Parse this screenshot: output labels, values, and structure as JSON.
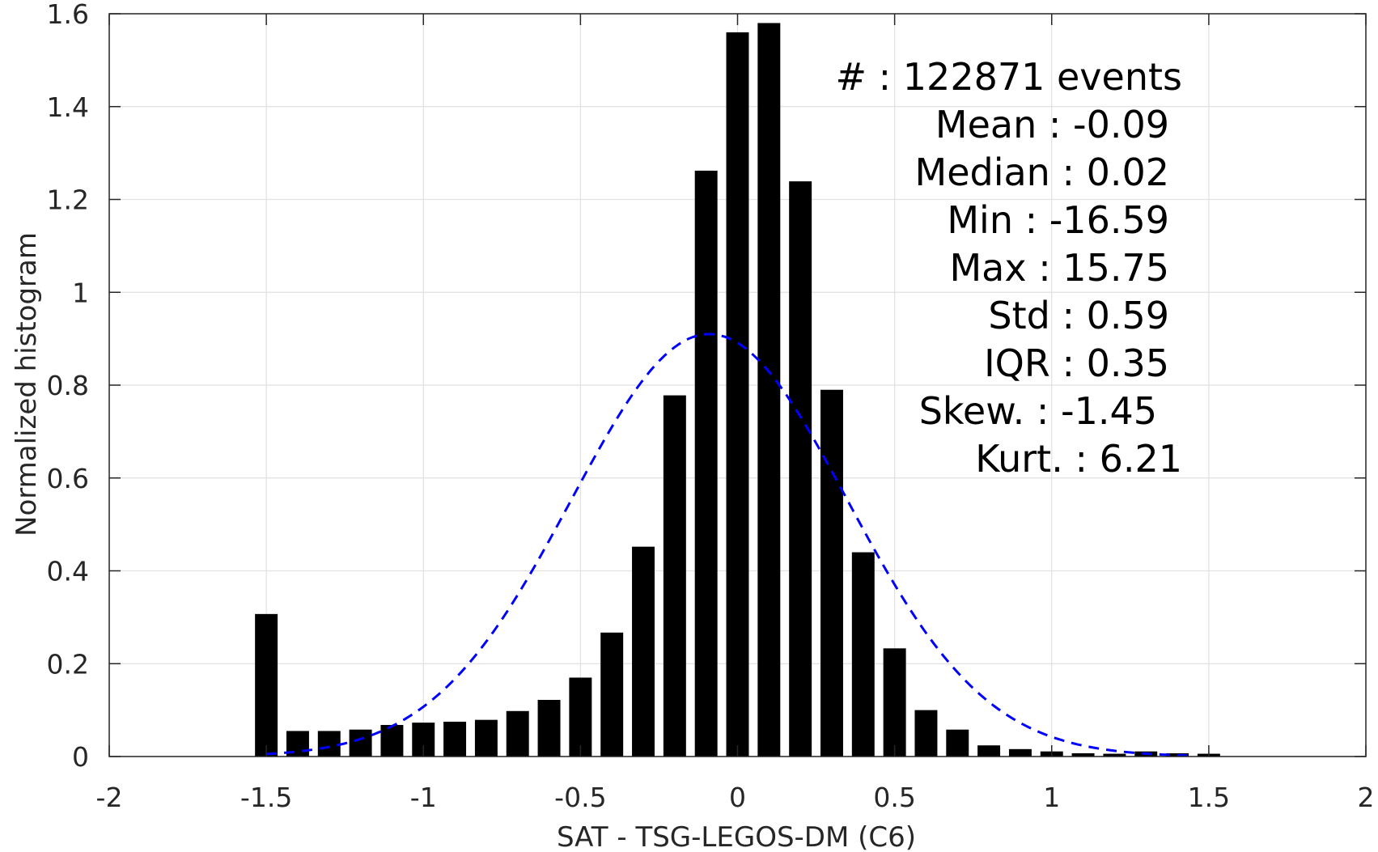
{
  "chart_data": {
    "type": "bar",
    "xlabel": "SAT - TSG-LEGOS-DM (C6)",
    "ylabel": "Normalized histogram",
    "xlim": [
      -2,
      2
    ],
    "ylim": [
      0,
      1.6
    ],
    "grid": true,
    "bar_color": "#000000",
    "x_ticks": [
      "-2",
      "-1.5",
      "-1",
      "-0.5",
      "0",
      "0.5",
      "1",
      "1.5",
      "2"
    ],
    "y_ticks": [
      "0",
      "0.2",
      "0.4",
      "0.6",
      "0.8",
      "1",
      "1.2",
      "1.4",
      "1.6"
    ],
    "x_tick_values": [
      -2,
      -1.5,
      -1,
      -0.5,
      0,
      0.5,
      1,
      1.5,
      2
    ],
    "y_tick_values": [
      0,
      0.2,
      0.4,
      0.6,
      0.8,
      1,
      1.2,
      1.4,
      1.6
    ],
    "bin_width": 0.1,
    "x": [
      -1.5,
      -1.4,
      -1.3,
      -1.2,
      -1.1,
      -1.0,
      -0.9,
      -0.8,
      -0.7,
      -0.6,
      -0.5,
      -0.4,
      -0.3,
      -0.2,
      -0.1,
      0.0,
      0.1,
      0.2,
      0.3,
      0.4,
      0.5,
      0.6,
      0.7,
      0.8,
      0.9,
      1.0,
      1.1,
      1.2,
      1.3,
      1.4,
      1.5
    ],
    "values": [
      0.307,
      0.055,
      0.055,
      0.058,
      0.068,
      0.073,
      0.075,
      0.079,
      0.098,
      0.122,
      0.17,
      0.267,
      0.452,
      0.778,
      1.262,
      1.56,
      1.58,
      1.239,
      0.79,
      0.44,
      0.233,
      0.1,
      0.058,
      0.024,
      0.016,
      0.011,
      0.007,
      0.006,
      0.011,
      0.007,
      0.006
    ],
    "fit_curve": {
      "type": "normal",
      "mean": -0.09,
      "std": 0.44,
      "peak": 0.91,
      "x_range": [
        -1.5,
        1.45
      ],
      "color": "#0000ff",
      "style": "dashed"
    },
    "annotations": [
      "#  : 122871 events",
      "Mean : -0.09",
      "Median : 0.02",
      "Min : -16.59",
      "Max : 15.75",
      "Std : 0.59",
      "IQR : 0.35",
      "Skew. : -1.45",
      "Kurt. : 6.21"
    ]
  }
}
